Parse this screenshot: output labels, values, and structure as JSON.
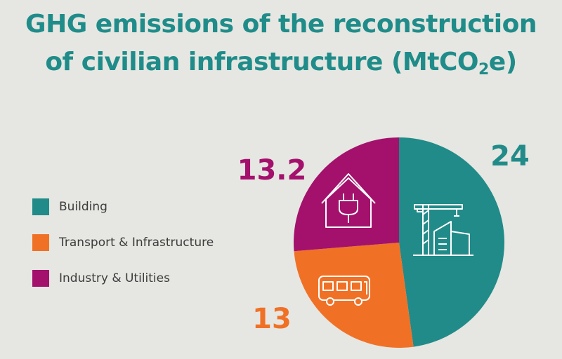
{
  "header": {
    "title_line1": "GHG emissions of the reconstruction",
    "title_line2_pre": "of civilian infrastructure (MtCO",
    "title_line2_sub": "2",
    "title_line2_post": "e)"
  },
  "chart_data": {
    "type": "pie",
    "title": "GHG emissions of the reconstruction of civilian infrastructure (MtCO2e)",
    "legend_position": "left",
    "slices": [
      {
        "name": "Building",
        "value": 24,
        "label": "24",
        "color": "#218b89",
        "icon": "crane-building-icon"
      },
      {
        "name": "Transport & Infrastructure",
        "value": 13,
        "label": "13",
        "color": "#f07126",
        "icon": "bus-icon"
      },
      {
        "name": "Industry & Utilities",
        "value": 13.2,
        "label": "13.2",
        "color": "#a3116d",
        "icon": "house-plug-icon"
      }
    ]
  }
}
